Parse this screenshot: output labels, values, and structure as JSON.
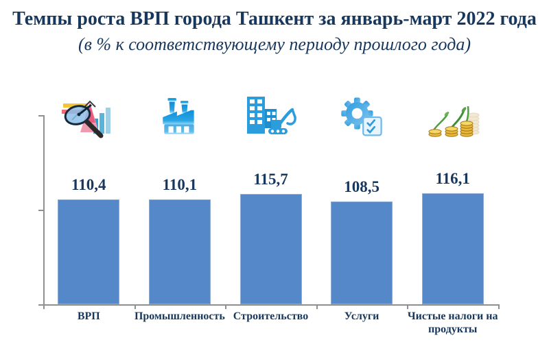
{
  "title": "Темпы роста ВРП города Ташкент за январь-март 2022 года",
  "subtitle": "(в % к соответствующему периоду прошлого года)",
  "colors": {
    "heading_text": "#17375D",
    "bar_fill": "#5588C8",
    "bar_edge": "#8fadd4",
    "axis_line": "#8f8f8f",
    "label_text": "#17375D"
  },
  "chart_data": {
    "type": "bar",
    "title": "Темпы роста ВРП города Ташкент за январь-март 2022 года",
    "subtitle": "(в % к соответствующему периоду прошлого года)",
    "categories": [
      "ВРП",
      "Промышленность",
      "Строительство",
      "Услуги",
      "Чистые налоги на продукты"
    ],
    "values": [
      110.4,
      110.1,
      115.7,
      108.5,
      116.1
    ],
    "value_labels": [
      "110,4",
      "110,1",
      "115,7",
      "108,5",
      "116,1"
    ],
    "icons": [
      "chart-magnifier-icon",
      "factory-icon",
      "construction-icon",
      "gear-checklist-icon",
      "coins-growth-icon"
    ],
    "series_color": "#5588C8",
    "xlabel": "",
    "ylabel": "",
    "value_axis_labels_shown": false,
    "grid": false,
    "legend": "none"
  }
}
